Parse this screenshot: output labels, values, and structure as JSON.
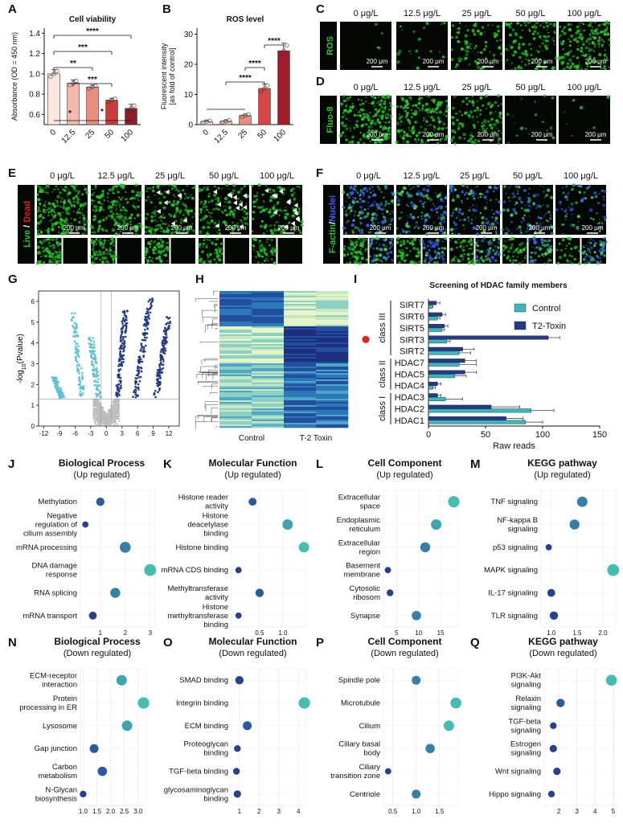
{
  "panel_letters": [
    "A",
    "B",
    "C",
    "D",
    "E",
    "F",
    "G",
    "H",
    "I",
    "J",
    "K",
    "L",
    "M",
    "N",
    "O",
    "P",
    "Q"
  ],
  "colors": {
    "bar_A": [
      "#fde6df",
      "#f5b8aa",
      "#e88f7e",
      "#c93b3b",
      "#8e1c2b"
    ],
    "bar_B": [
      "#fde6df",
      "#f5b8aa",
      "#e88f7e",
      "#d94545",
      "#a11d2b"
    ],
    "control": "#3ab6bd",
    "t2toxin": "#253a86",
    "volcano_up": "#253a86",
    "volcano_down": "#5dc3d3",
    "volcano_ns": "#bdbdbd",
    "micro_green": "#28c42a",
    "micro_blue": "#2233aa",
    "micro_bg": "#030803"
  },
  "chart_data": [
    {
      "id": "A",
      "type": "bar",
      "title": "Cell viability",
      "ylabel": "Absorbance (OD = 450 nm)",
      "categories": [
        "0",
        "12.5",
        "25",
        "50",
        "100"
      ],
      "values": [
        1.0,
        0.91,
        0.87,
        0.74,
        0.66
      ],
      "errors": [
        0.04,
        0.03,
        0.02,
        0.02,
        0.04
      ],
      "ylim": [
        0.5,
        1.45
      ],
      "yticks": [
        "0.6",
        "0.8",
        "1.0",
        "1.2",
        "1.4"
      ],
      "significance": [
        "****",
        "***",
        "**",
        "***",
        "*",
        "*"
      ]
    },
    {
      "id": "B",
      "type": "bar",
      "title": "ROS level",
      "ylabel": "Fluorescent intensity [as fold of control]",
      "categories": [
        "0",
        "12.5",
        "25",
        "50",
        "100"
      ],
      "values": [
        1.0,
        1.1,
        3.0,
        12.0,
        24.5
      ],
      "errors": [
        0.4,
        0.5,
        0.5,
        1.5,
        2.5
      ],
      "ylim": [
        0,
        32
      ],
      "yticks": [
        "0",
        "10",
        "20",
        "30"
      ],
      "significance": [
        "****",
        "****",
        "****"
      ]
    },
    {
      "id": "G",
      "type": "scatter",
      "title": "",
      "xlabel": "",
      "ylabel": "-log10(Pvalue)",
      "xticks": [
        "-12",
        "-9",
        "-6",
        "-3",
        "0",
        "3",
        "6",
        "9",
        "12"
      ],
      "yticks": [
        "0",
        "1",
        "2",
        "3",
        "4",
        "5",
        "6"
      ],
      "xlim": [
        -13,
        14
      ],
      "ylim": [
        0,
        6.5
      ],
      "threshold_y": 1.3
    },
    {
      "id": "H",
      "type": "heatmap",
      "categories": [
        "Control",
        "T-2 Toxin"
      ]
    },
    {
      "id": "I",
      "type": "bar",
      "title": "Screening of HDAC family members",
      "xlabel": "Raw reads",
      "xlim": [
        0,
        150
      ],
      "xticks": [
        "0",
        "50",
        "100",
        "150"
      ],
      "categories": [
        "SIRT7",
        "SIRT6",
        "SIRT5",
        "SIRT3",
        "SIRT2",
        "HDAC7",
        "HDAC5",
        "HDAC4",
        "HDAC3",
        "HDAC2",
        "HDAC1"
      ],
      "classes": [
        {
          "name": "class III",
          "from": 0,
          "to": 4
        },
        {
          "name": "class II",
          "from": 5,
          "to": 7
        },
        {
          "name": "class I",
          "from": 8,
          "to": 10
        }
      ],
      "series": [
        {
          "name": "Control",
          "values": [
            3,
            8,
            12,
            16,
            27,
            27,
            23,
            4,
            15,
            90,
            85
          ],
          "errors": [
            1,
            2,
            2,
            3,
            10,
            15,
            10,
            2,
            15,
            20,
            15
          ]
        },
        {
          "name": "T2-Toxin",
          "values": [
            7,
            12,
            14,
            105,
            30,
            32,
            32,
            8,
            8,
            55,
            68
          ],
          "errors": [
            3,
            3,
            3,
            10,
            10,
            10,
            10,
            3,
            3,
            25,
            15
          ]
        }
      ]
    },
    {
      "id": "J",
      "type": "scatter",
      "title": "Biological Process",
      "subtitle": "(Up regulated)",
      "categories": [
        "Methylation",
        "Negative regulation of cilium assembly",
        "mRNA processing",
        "DNA damage response",
        "RNA splicing",
        "mRNA transport"
      ],
      "values": [
        1.0,
        0.4,
        2.0,
        3.0,
        1.6,
        0.7
      ],
      "sizes": [
        1.0,
        0.6,
        1.5,
        1.7,
        1.3,
        0.9
      ],
      "xlim": [
        0.2,
        3.2
      ],
      "xticks": [
        {
          "v": 1,
          "t": "1"
        },
        {
          "v": 2,
          "t": "2"
        },
        {
          "v": 3,
          "t": "3"
        }
      ]
    },
    {
      "id": "K",
      "type": "scatter",
      "title": "Molecular Function",
      "subtitle": "(Up regulated)",
      "categories": [
        "Histone reader activity",
        "Histone deacetylase binding",
        "Histone binding",
        "mRNA CDS binding",
        "Methyltransferase activity",
        "Histone methyltransferase binding"
      ],
      "values": [
        0.35,
        1.1,
        1.45,
        0.05,
        0.5,
        0.05
      ],
      "sizes": [
        0.9,
        1.4,
        1.4,
        0.6,
        1.0,
        0.6
      ],
      "xlim": [
        -0.1,
        1.5
      ],
      "xticks": [
        {
          "v": 0.5,
          "t": "0.5"
        },
        {
          "v": 1.0,
          "t": "1.0"
        }
      ]
    },
    {
      "id": "L",
      "type": "scatter",
      "title": "Cell Component",
      "subtitle": "(Up regulated)",
      "categories": [
        "Extracellular space",
        "Endoplasmic reticulum",
        "Extracellular region",
        "Basement membrane",
        "Cytosolic ribosom",
        "Synapse"
      ],
      "values": [
        18,
        14,
        11.5,
        3,
        3.5,
        9.5
      ],
      "sizes": [
        1.6,
        1.4,
        1.3,
        0.6,
        0.7,
        1.2
      ],
      "xlim": [
        2,
        19
      ],
      "xticks": [
        {
          "v": 5,
          "t": "5"
        },
        {
          "v": 10,
          "t": "10"
        },
        {
          "v": 15,
          "t": "15"
        }
      ]
    },
    {
      "id": "M",
      "type": "scatter",
      "title": "KEGG pathway",
      "subtitle": "(Up regulated)",
      "categories": [
        "TNF signaling",
        "NF-kappa B signaling",
        "p53 signaling",
        "MAPK signaling",
        "IL-17 signaling",
        "TLR signaling"
      ],
      "values": [
        1.6,
        1.45,
        0.95,
        2.2,
        1.0,
        1.05
      ],
      "sizes": [
        1.4,
        1.3,
        0.6,
        1.7,
        0.9,
        1.0
      ],
      "xlim": [
        0.8,
        2.25
      ],
      "xticks": [
        {
          "v": 1.0,
          "t": "1.0"
        },
        {
          "v": 1.5,
          "t": "1.5"
        },
        {
          "v": 2.0,
          "t": "2.0"
        }
      ]
    },
    {
      "id": "N",
      "type": "scatter",
      "title": "Biological Process",
      "subtitle": "(Down regulated)",
      "categories": [
        "ECM-receptor interaction",
        "Protein processing in ER",
        "Lysosome",
        "Gap junction",
        "Carbon metabolism",
        "N-Glycan biosynthesis"
      ],
      "values": [
        2.4,
        3.2,
        2.6,
        1.4,
        1.7,
        1.0
      ],
      "sizes": [
        1.4,
        1.6,
        1.4,
        1.1,
        1.2,
        0.7
      ],
      "xlim": [
        0.9,
        3.3
      ],
      "xticks": [
        {
          "v": 1.0,
          "t": "1.0"
        },
        {
          "v": 1.5,
          "t": "1.5"
        },
        {
          "v": 2.0,
          "t": "2.0"
        },
        {
          "v": 2.5,
          "t": "2.5"
        },
        {
          "v": 3.0,
          "t": "3.0"
        }
      ]
    },
    {
      "id": "O",
      "type": "scatter",
      "title": "Molecular Function",
      "subtitle": "(Down regulated)",
      "categories": [
        "SMAD binding",
        "Integrin binding",
        "ECM binding",
        "Proteoglycan binding",
        "TGF-beta binding",
        "glycosaminoglycan binding"
      ],
      "values": [
        1.0,
        4.3,
        1.4,
        0.9,
        0.85,
        0.9
      ],
      "sizes": [
        1.0,
        1.6,
        1.1,
        0.7,
        0.7,
        0.8
      ],
      "xlim": [
        0.6,
        4.4
      ],
      "xticks": [
        {
          "v": 1,
          "t": "1"
        },
        {
          "v": 2,
          "t": "2"
        },
        {
          "v": 3,
          "t": "3"
        },
        {
          "v": 4,
          "t": "4"
        }
      ]
    },
    {
      "id": "P",
      "type": "scatter",
      "title": "Cell Component",
      "subtitle": "(Down regulated)",
      "categories": [
        "Spindle pole",
        "Microtubule",
        "Cilium",
        "Ciliary basal body",
        "Ciliary transition zone",
        "Centriole"
      ],
      "values": [
        1.0,
        1.85,
        1.7,
        1.3,
        0.4,
        1.0
      ],
      "sizes": [
        1.1,
        1.5,
        1.4,
        1.2,
        0.6,
        1.1
      ],
      "xlim": [
        0.3,
        1.9
      ],
      "xticks": [
        {
          "v": 0.5,
          "t": "0.5"
        },
        {
          "v": 1.0,
          "t": "1.0"
        },
        {
          "v": 1.5,
          "t": "1.5"
        }
      ]
    },
    {
      "id": "Q",
      "type": "scatter",
      "title": "KEGG pathway",
      "subtitle": "(Down regulated)",
      "categories": [
        "PI3K-Akt signaling",
        "Relaxin signaling",
        "TGF-beta signaling",
        "Estrogen signaling",
        "Wnt signaling",
        "Hippo signaling"
      ],
      "values": [
        4.9,
        2.1,
        1.7,
        1.7,
        1.9,
        1.6
      ],
      "sizes": [
        1.5,
        1.0,
        0.7,
        0.8,
        0.8,
        0.7
      ],
      "xlim": [
        1.2,
        5.05
      ],
      "xticks": [
        {
          "v": 2,
          "t": "2"
        },
        {
          "v": 3,
          "t": "3"
        },
        {
          "v": 4,
          "t": "4"
        },
        {
          "v": 5,
          "t": "5"
        }
      ]
    }
  ],
  "micrographs": {
    "conc_labels": [
      "0 μg/L",
      "12.5 μg/L",
      "25 μg/L",
      "50 μg/L",
      "100 μg/L"
    ],
    "scale_label": "200 μm",
    "C": {
      "stain": "ROS",
      "density": [
        0.02,
        0.08,
        0.35,
        0.5,
        0.75
      ]
    },
    "D": {
      "stain": "Fluo-8",
      "density": [
        0.85,
        0.7,
        0.55,
        0.08,
        0.03
      ]
    },
    "E": {
      "stain_live": "Live",
      "stain_sep": " / ",
      "stain_dead": "Dead",
      "density": [
        0.85,
        0.8,
        0.7,
        0.6,
        0.55
      ],
      "arrowheads": [
        0,
        0,
        8,
        12,
        14
      ]
    },
    "F": {
      "stain_actin": "F-actin",
      "stain_sep": "/",
      "stain_nuclei": "Nuclei",
      "density": [
        0.7,
        0.6,
        0.5,
        0.45,
        0.3
      ]
    }
  },
  "misc": {
    "i_class_labels": [
      "class III",
      "class II",
      "class I"
    ]
  }
}
